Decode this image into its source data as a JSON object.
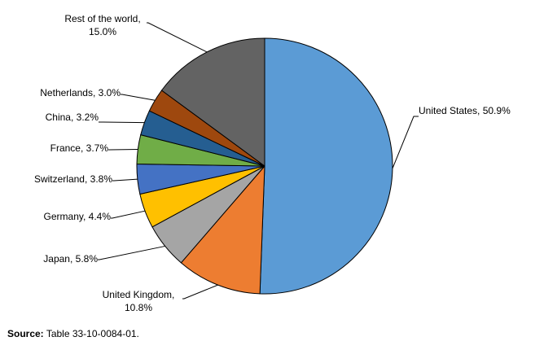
{
  "chart_data": {
    "type": "pie",
    "values": [
      50.9,
      10.8,
      5.8,
      4.4,
      3.8,
      3.7,
      3.2,
      3.0,
      15.0
    ],
    "value_labels": [
      "United States, 50.9%",
      "United Kingdom, 10.8%",
      "Japan, 5.8%",
      "Germany, 4.4%",
      "Switzerland, 3.8%",
      "France, 3.7%",
      "China, 3.2%",
      "Netherlands, 3.0%",
      "Rest of the world, 15.0%"
    ],
    "colors": [
      "#5b9bd5",
      "#ed7d31",
      "#a5a5a5",
      "#ffc000",
      "#4472c4",
      "#70ad47",
      "#255e91",
      "#9e480e",
      "#636363"
    ]
  },
  "source_label": "Source:",
  "source": "Table 33-10-0084-01."
}
